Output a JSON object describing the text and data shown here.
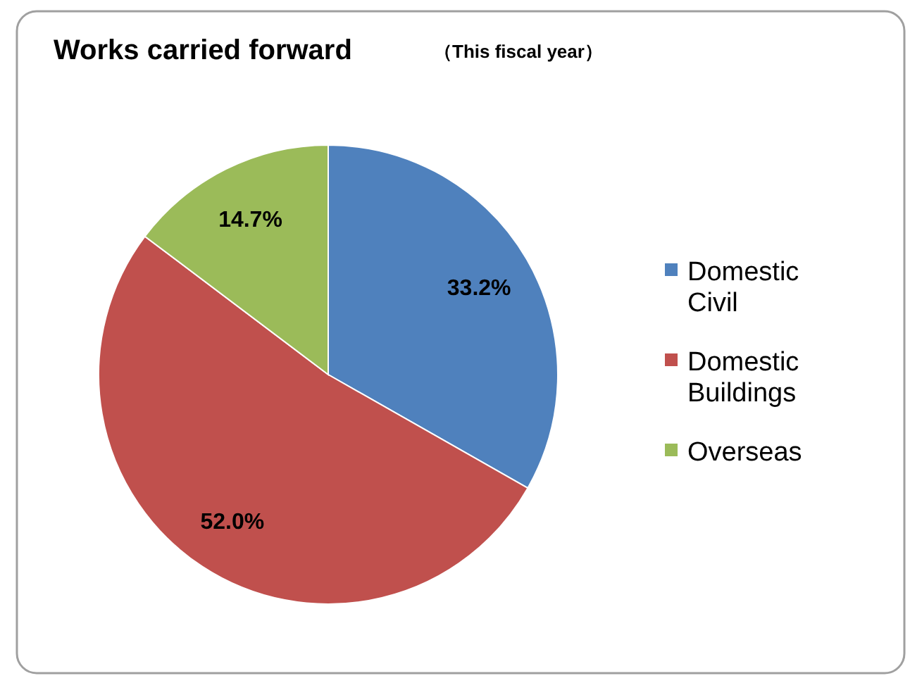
{
  "chart_data": {
    "type": "pie",
    "title": "Works carried forward",
    "subtitle": "（This fiscal year）",
    "categories": [
      "Domestic Civil",
      "Domestic Buildings",
      "Overseas"
    ],
    "values": [
      33.2,
      52.0,
      14.7
    ],
    "value_labels": [
      "33.2%",
      "52.0%",
      "14.7%"
    ],
    "colors": [
      "#4f81bd",
      "#c0504d",
      "#9bbb59"
    ],
    "legend": "right"
  }
}
